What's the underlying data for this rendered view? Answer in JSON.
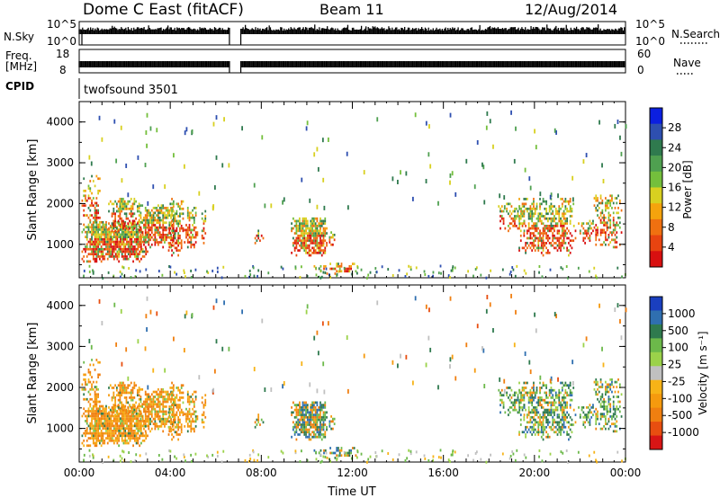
{
  "header": {
    "station": "Dome C East (fitACF)",
    "beam": "Beam 11",
    "date": "12/Aug/2014"
  },
  "strips": {
    "nsky": {
      "label": "N.Sky",
      "tick_top": "10^5",
      "tick_bottom": "10^0",
      "right_label": "N.Search",
      "right_tick_top": "10^5",
      "right_tick_bottom": "10^0"
    },
    "freq": {
      "label_top": "Freq.",
      "label_bottom": "[MHz]",
      "tick_top": "18",
      "tick_bottom": "8",
      "right_label": "Nave",
      "right_tick_top": "60",
      "right_tick_bottom": "0"
    },
    "cpid": {
      "label": "CPID",
      "value": "twofsound 3501"
    }
  },
  "chart_data": [
    {
      "type": "heatmap",
      "panel": "power",
      "ylabel": "Slant Range [km]",
      "yticks": [
        "1000",
        "2000",
        "3000",
        "4000"
      ],
      "ylim": [
        180,
        4500
      ],
      "colorbar": {
        "label": "Power [dB]",
        "ticks": [
          "4",
          "8",
          "12",
          "16",
          "20",
          "24",
          "28"
        ],
        "colors": [
          "#0b1fe0",
          "#2e4fb0",
          "#2f7a4e",
          "#4fa050",
          "#74bf3c",
          "#d8d020",
          "#f5a30d",
          "#f07010",
          "#e84410",
          "#d81010"
        ]
      }
    },
    {
      "type": "heatmap",
      "panel": "velocity",
      "ylabel": "Slant Range [km]",
      "xlabel": "Time UT",
      "yticks": [
        "1000",
        "2000",
        "3000",
        "4000"
      ],
      "xticks": [
        "00:00",
        "04:00",
        "08:00",
        "12:00",
        "16:00",
        "20:00",
        "00:00"
      ],
      "ylim": [
        180,
        4500
      ],
      "colorbar": {
        "label": "Velocity [m s⁻¹]",
        "ticks": [
          "1000",
          "500",
          "100",
          "25",
          "-25",
          "-100",
          "-500",
          "-1000"
        ],
        "colors": [
          "#1a3fbf",
          "#2f6fb0",
          "#2f7a4e",
          "#6cb94a",
          "#9bd24a",
          "#c0c0c0",
          "#f7b317",
          "#f59a0e",
          "#f07f10",
          "#e84e10",
          "#d81515"
        ]
      }
    }
  ]
}
